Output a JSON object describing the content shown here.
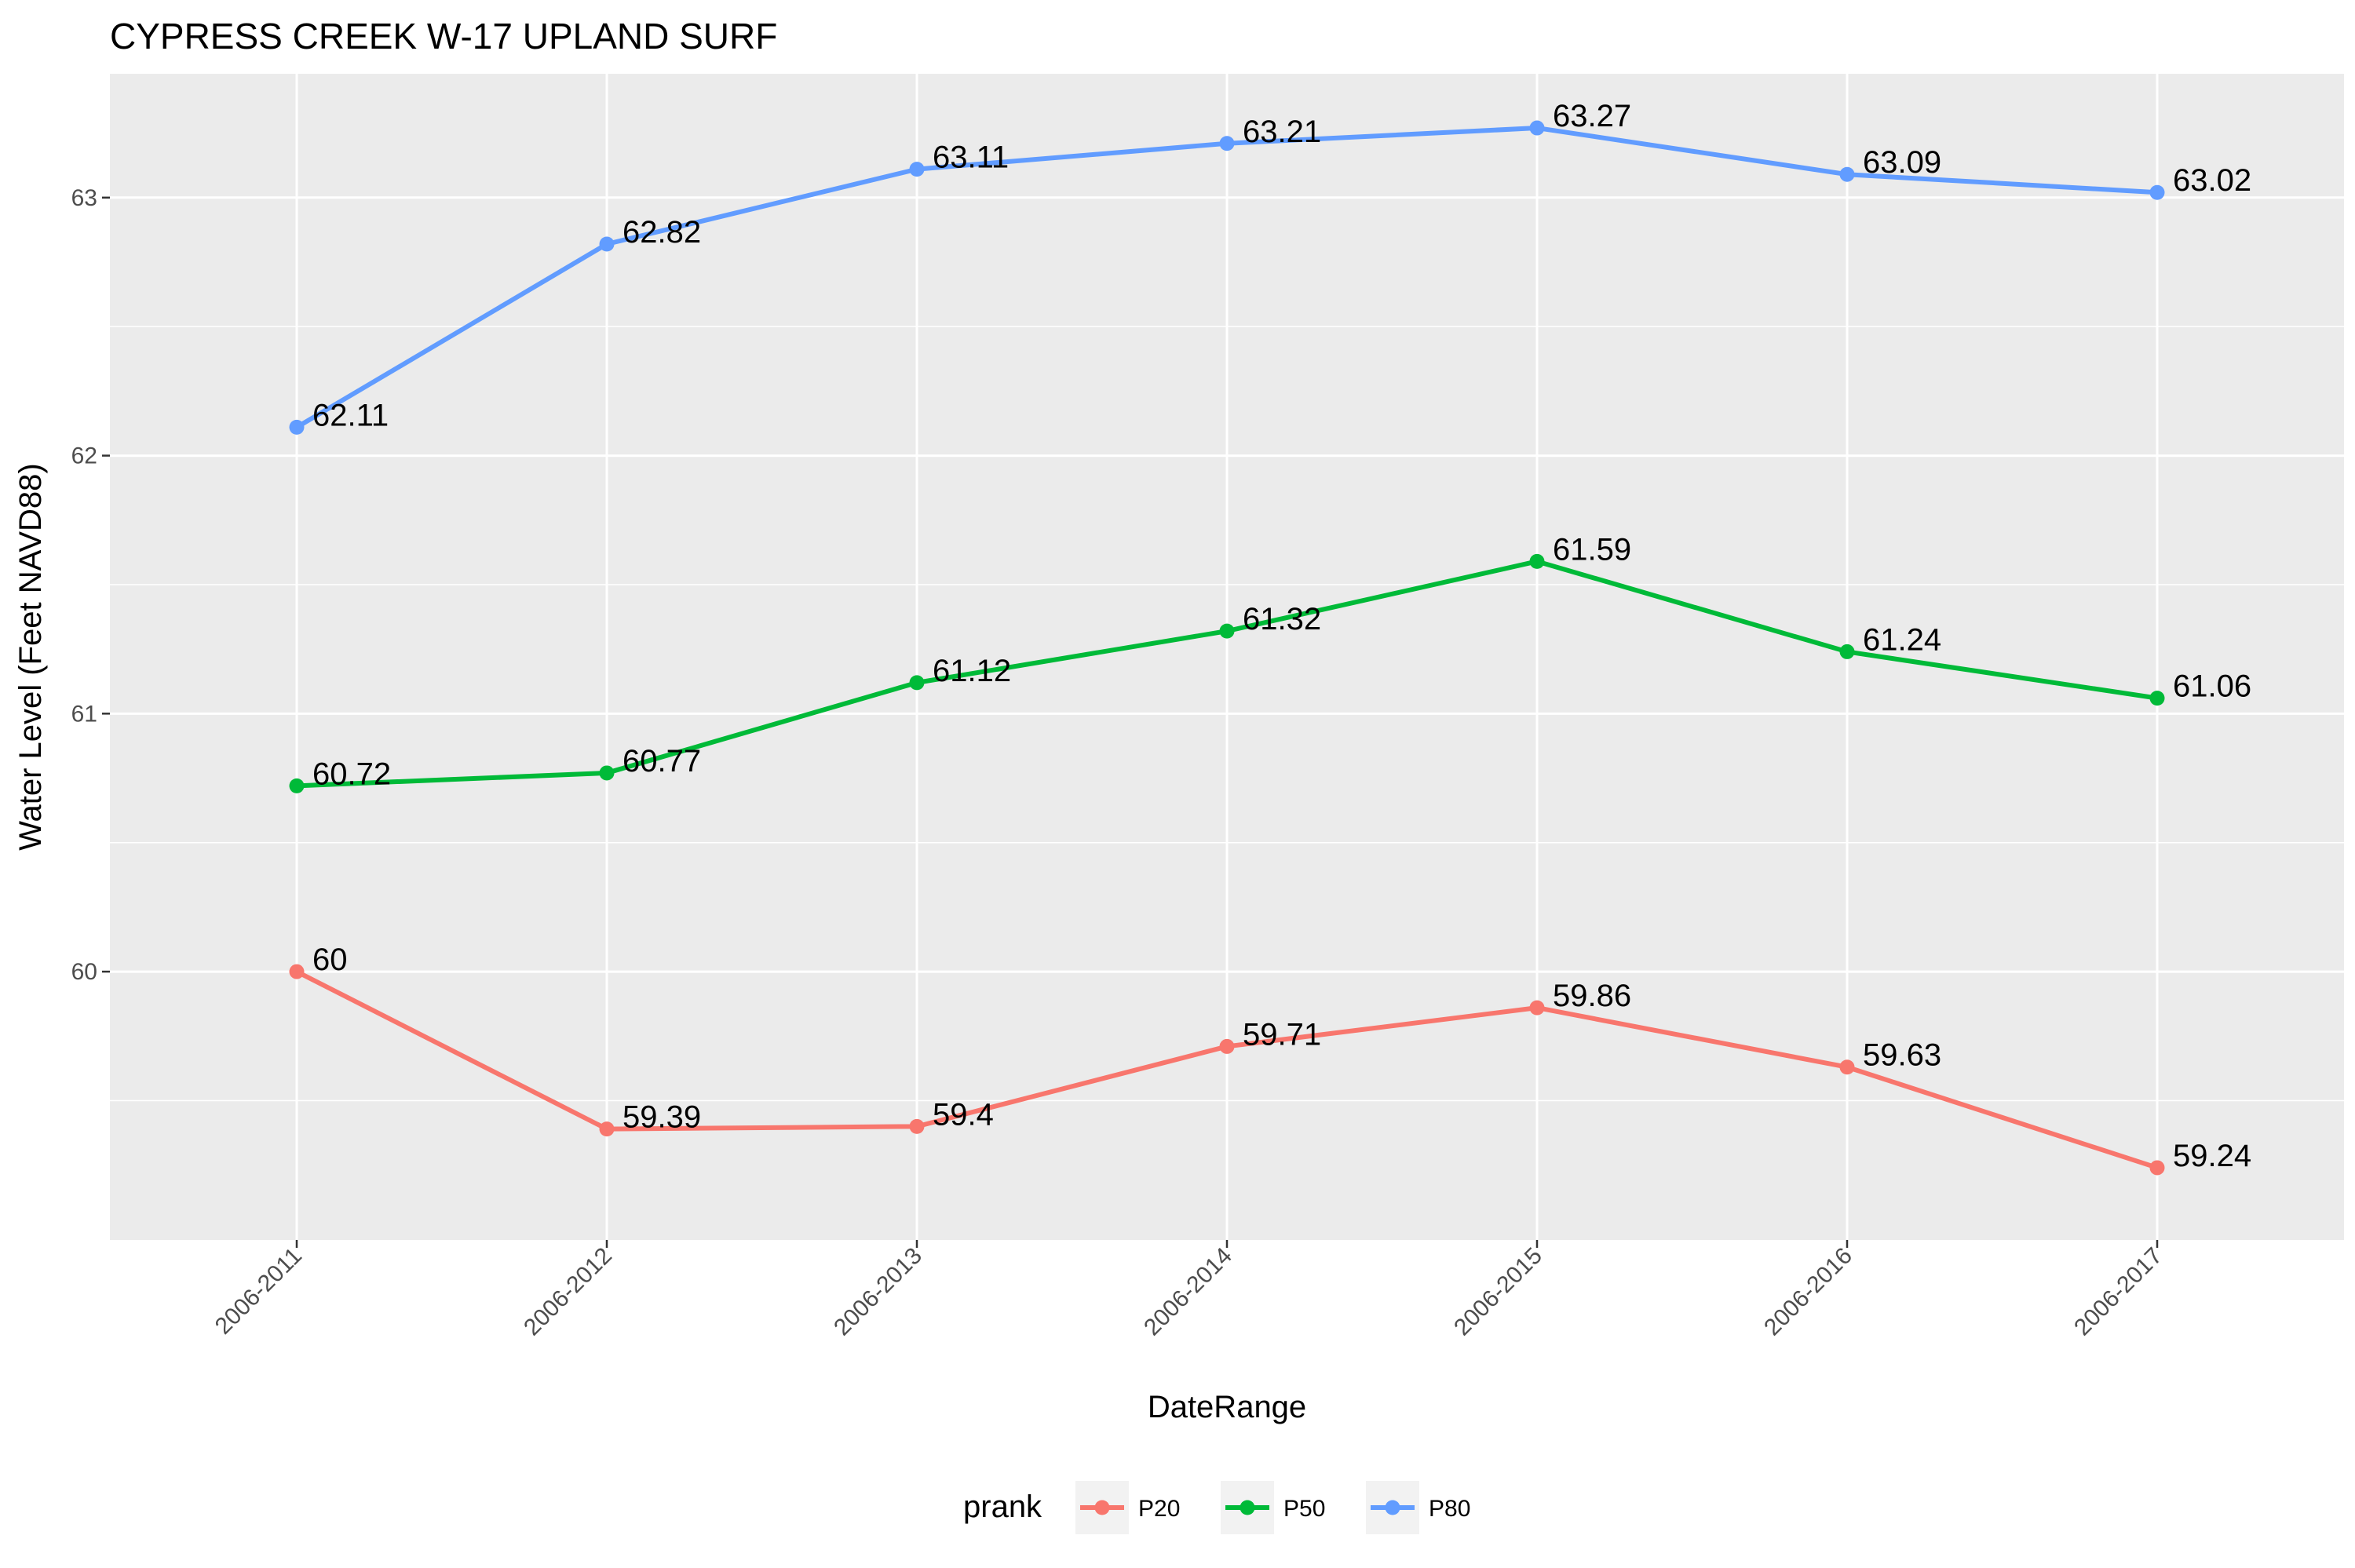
{
  "chart_data": {
    "type": "line",
    "title": "CYPRESS CREEK W-17 UPLAND SURF",
    "xlabel": "DateRange",
    "ylabel": "Water Level (Feet NAVD88)",
    "categories": [
      "2006-2011",
      "2006-2012",
      "2006-2013",
      "2006-2014",
      "2006-2015",
      "2006-2016",
      "2006-2017"
    ],
    "ylim": [
      58.96,
      63.48
    ],
    "yticks": [
      60,
      61,
      62,
      63
    ],
    "grid": true,
    "legend": {
      "title": "prank",
      "position": "bottom"
    },
    "series": [
      {
        "name": "P20",
        "color": "#F8766D",
        "values": [
          60,
          59.39,
          59.4,
          59.71,
          59.86,
          59.63,
          59.24
        ],
        "labels": [
          "60",
          "59.39",
          "59.4",
          "59.71",
          "59.86",
          "59.63",
          "59.24"
        ]
      },
      {
        "name": "P50",
        "color": "#00BA38",
        "values": [
          60.72,
          60.77,
          61.12,
          61.32,
          61.59,
          61.24,
          61.06
        ],
        "labels": [
          "60.72",
          "60.77",
          "61.12",
          "61.32",
          "61.59",
          "61.24",
          "61.06"
        ]
      },
      {
        "name": "P80",
        "color": "#619CFF",
        "values": [
          62.11,
          62.82,
          63.11,
          63.21,
          63.27,
          63.09,
          63.02
        ],
        "labels": [
          "62.11",
          "62.82",
          "63.11",
          "63.21",
          "63.27",
          "63.09",
          "63.02"
        ]
      }
    ]
  }
}
